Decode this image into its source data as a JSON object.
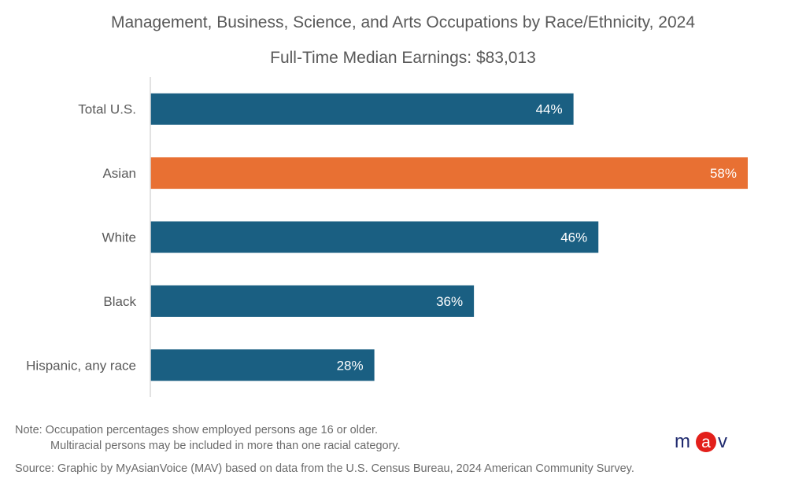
{
  "chart_data": {
    "type": "bar",
    "orientation": "horizontal",
    "title": "Management, Business, Science, and Arts Occupations by Race/Ethnicity, 2024",
    "subtitle": "Full-Time Median Earnings: $83,013",
    "categories": [
      "Total U.S.",
      "Asian",
      "White",
      "Black",
      "Hispanic, any race"
    ],
    "values": [
      44,
      58,
      46,
      36,
      28
    ],
    "data_labels": [
      "44%",
      "58%",
      "46%",
      "36%",
      "28%"
    ],
    "bar_colors": [
      "#1a5f82",
      "#e87033",
      "#1a5f82",
      "#1a5f82",
      "#1a5f82"
    ],
    "xlabel": "",
    "ylabel": "",
    "xlim": [
      10,
      58
    ],
    "grid": false,
    "legend": "none"
  },
  "footer": {
    "note_line1": "Note: Occupation percentages show employed persons age 16 or older.",
    "note_line2": "Multiracial persons may be included in more than one racial category.",
    "source": "Source: Graphic by MyAsianVoice (MAV) based on data from the  U.S. Census Bureau,  2024 American Community Survey."
  },
  "logo": {
    "text_m": "m",
    "text_a": "a",
    "text_v": "v",
    "brand_blue": "#1f2a6e",
    "brand_red": "#e3201b"
  }
}
